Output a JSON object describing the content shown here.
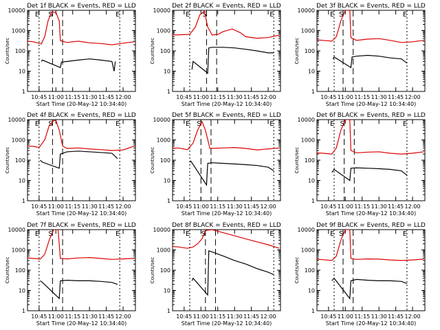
{
  "figure": {
    "xlabel": "Start Time (20-May-12 10:34:40)",
    "ylabel": "Counts/sec",
    "x_tick_labels": [
      "10:45",
      "11:00",
      "11:15",
      "11:30",
      "11:45",
      "12:00"
    ],
    "y_tick_labels": [
      "1",
      "10",
      "100",
      "1000",
      "10000"
    ],
    "marker_labels": [
      "E",
      "S",
      "E"
    ]
  },
  "colors": {
    "events": "#000000",
    "lld": "#dd0000",
    "axes": "#000000"
  },
  "chart_data": [
    {
      "type": "line",
      "title": "Det 1f BLACK = Events, RED = LLD",
      "ylim": [
        1,
        10000
      ],
      "y_scale": "log",
      "xlim": [
        "10:34:40",
        "12:11:00"
      ],
      "markers": {
        "E_left": "10:45",
        "S": "10:57",
        "E_right": "11:57"
      },
      "series": [
        {
          "name": "Events",
          "color": "#000000",
          "x": [
            "10:47",
            "10:48",
            "11:04",
            "11:05",
            "11:10",
            "11:20",
            "11:30",
            "11:40",
            "11:50",
            "11:52",
            "11:53"
          ],
          "y": [
            30,
            35,
            15,
            28,
            30,
            35,
            40,
            35,
            30,
            10,
            30
          ]
        },
        {
          "name": "LLD",
          "color": "#dd0000",
          "x": [
            "10:34",
            "10:40",
            "10:47",
            "10:50",
            "10:53",
            "10:56",
            "11:00",
            "11:03",
            "11:04",
            "11:10",
            "11:20",
            "11:30",
            "11:40",
            "11:50",
            "12:00",
            "12:10"
          ],
          "y": [
            300,
            280,
            220,
            500,
            3000,
            8000,
            8000,
            3000,
            320,
            260,
            300,
            250,
            230,
            200,
            240,
            280
          ]
        }
      ]
    },
    {
      "type": "line",
      "title": "Det 2f BLACK = Events, RED = LLD",
      "ylim": [
        1,
        10000
      ],
      "y_scale": "log",
      "xlim": [
        "10:34:40",
        "12:11:00"
      ],
      "markers": {
        "E_left": "10:50",
        "S": "11:05",
        "E_right": "12:05"
      },
      "series": [
        {
          "name": "Events",
          "color": "#000000",
          "x": [
            "10:52",
            "10:53",
            "11:06",
            "11:07",
            "11:10",
            "11:20",
            "11:30",
            "11:40",
            "11:50",
            "12:00",
            "12:05"
          ],
          "y": [
            12,
            30,
            8,
            140,
            150,
            150,
            140,
            120,
            100,
            80,
            80
          ]
        },
        {
          "name": "LLD",
          "color": "#dd0000",
          "x": [
            "10:34",
            "10:40",
            "10:50",
            "10:55",
            "10:59",
            "11:03",
            "11:06",
            "11:10",
            "11:15",
            "11:20",
            "11:28",
            "11:35",
            "11:40",
            "11:50",
            "12:00",
            "12:10"
          ],
          "y": [
            600,
            620,
            650,
            1500,
            6000,
            9000,
            1500,
            600,
            650,
            900,
            1200,
            800,
            500,
            420,
            450,
            600
          ]
        }
      ]
    },
    {
      "type": "line",
      "title": "Det 3f BLACK = Events, RED = LLD",
      "ylim": [
        1,
        10000
      ],
      "y_scale": "log",
      "xlim": [
        "10:34:40",
        "12:11:00"
      ],
      "markers": {
        "E_left": "10:50",
        "S": "10:58",
        "E_right": "11:55"
      },
      "series": [
        {
          "name": "Events",
          "color": "#000000",
          "x": [
            "10:49",
            "10:50",
            "11:05",
            "11:06",
            "11:10",
            "11:20",
            "11:30",
            "11:40",
            "11:50",
            "11:55"
          ],
          "y": [
            40,
            50,
            15,
            50,
            55,
            60,
            55,
            45,
            40,
            25
          ]
        },
        {
          "name": "LLD",
          "color": "#dd0000",
          "x": [
            "10:34",
            "10:40",
            "10:48",
            "10:52",
            "10:56",
            "11:00",
            "11:04",
            "11:05",
            "11:10",
            "11:20",
            "11:30",
            "11:40",
            "11:50",
            "12:00",
            "12:10"
          ],
          "y": [
            350,
            330,
            300,
            500,
            3000,
            10000,
            10000,
            450,
            330,
            380,
            400,
            330,
            260,
            280,
            330
          ]
        }
      ]
    },
    {
      "type": "line",
      "title": "Det 4f BLACK = Events, RED = LLD",
      "ylim": [
        1,
        10000
      ],
      "y_scale": "log",
      "xlim": [
        "10:34:40",
        "12:11:00"
      ],
      "markers": {
        "E_left": "10:45",
        "S": "10:57",
        "E_right": "11:57"
      },
      "series": [
        {
          "name": "Events",
          "color": "#000000",
          "x": [
            "10:46",
            "10:48",
            "11:03",
            "11:04",
            "11:10",
            "11:20",
            "11:30",
            "11:40",
            "11:50",
            "11:55"
          ],
          "y": [
            100,
            80,
            40,
            200,
            260,
            280,
            260,
            240,
            220,
            120
          ]
        },
        {
          "name": "LLD",
          "color": "#dd0000",
          "x": [
            "10:34",
            "10:40",
            "10:45",
            "10:50",
            "10:54",
            "10:58",
            "11:00",
            "11:03",
            "11:06",
            "11:10",
            "11:20",
            "11:30",
            "11:40",
            "11:50",
            "12:00",
            "12:10"
          ],
          "y": [
            500,
            480,
            420,
            1000,
            5000,
            9000,
            9000,
            3000,
            500,
            380,
            400,
            360,
            330,
            300,
            320,
            500
          ]
        }
      ]
    },
    {
      "type": "line",
      "title": "Det 5f BLACK = Events, RED = LLD",
      "ylim": [
        1,
        10000
      ],
      "y_scale": "log",
      "xlim": [
        "10:34:40",
        "12:11:00"
      ],
      "markers": {
        "E_left": "10:50",
        "S": "11:00",
        "E_right": "12:05"
      },
      "series": [
        {
          "name": "Events",
          "color": "#000000",
          "x": [
            "10:50",
            "10:51",
            "11:05",
            "11:06",
            "11:10",
            "11:20",
            "11:30",
            "11:40",
            "11:50",
            "12:00",
            "12:05"
          ],
          "y": [
            80,
            90,
            6,
            70,
            75,
            70,
            65,
            60,
            55,
            45,
            30
          ]
        },
        {
          "name": "LLD",
          "color": "#dd0000",
          "x": [
            "10:34",
            "10:40",
            "10:48",
            "10:53",
            "10:57",
            "11:01",
            "11:04",
            "11:08",
            "11:20",
            "11:30",
            "11:40",
            "11:50",
            "12:00",
            "12:10"
          ],
          "y": [
            380,
            400,
            330,
            700,
            3000,
            8000,
            3000,
            380,
            400,
            420,
            380,
            320,
            360,
            400
          ]
        }
      ]
    },
    {
      "type": "line",
      "title": "Det 6f BLACK = Events, RED = LLD",
      "ylim": [
        1,
        10000
      ],
      "y_scale": "log",
      "xlim": [
        "10:34:40",
        "12:11:00"
      ],
      "markers": {
        "E_left": "10:50",
        "S": "10:59",
        "E_right": "11:55"
      },
      "series": [
        {
          "name": "Events",
          "color": "#000000",
          "x": [
            "10:48",
            "10:50",
            "11:04",
            "11:05",
            "11:10",
            "11:20",
            "11:30",
            "11:40",
            "11:50",
            "11:55"
          ],
          "y": [
            25,
            35,
            10,
            40,
            42,
            40,
            38,
            35,
            30,
            18
          ]
        },
        {
          "name": "LLD",
          "color": "#dd0000",
          "x": [
            "10:34",
            "10:40",
            "10:48",
            "10:52",
            "10:56",
            "11:00",
            "11:04",
            "11:05",
            "11:10",
            "11:20",
            "11:30",
            "11:40",
            "11:50",
            "12:00",
            "12:10"
          ],
          "y": [
            230,
            220,
            200,
            400,
            3000,
            10000,
            10000,
            300,
            230,
            250,
            260,
            220,
            200,
            220,
            260
          ]
        }
      ]
    },
    {
      "type": "line",
      "title": "Det 7f BLACK = Events, RED = LLD",
      "ylim": [
        1,
        10000
      ],
      "y_scale": "log",
      "xlim": [
        "10:34:40",
        "12:11:00"
      ],
      "markers": {
        "E_left": "10:45",
        "S": "10:57",
        "E_right": "11:57"
      },
      "series": [
        {
          "name": "Events",
          "color": "#000000",
          "x": [
            "10:46",
            "10:48",
            "11:03",
            "11:04",
            "11:10",
            "11:20",
            "11:30",
            "11:40",
            "11:50",
            "11:55"
          ],
          "y": [
            30,
            25,
            4,
            30,
            32,
            30,
            30,
            28,
            25,
            20
          ]
        },
        {
          "name": "LLD",
          "color": "#dd0000",
          "x": [
            "10:34",
            "10:40",
            "10:46",
            "10:50",
            "10:54",
            "10:58",
            "11:02",
            "11:04",
            "11:10",
            "11:20",
            "11:30",
            "11:40",
            "11:50",
            "12:00",
            "12:10"
          ],
          "y": [
            400,
            380,
            350,
            600,
            3000,
            10000,
            10000,
            380,
            360,
            400,
            420,
            380,
            340,
            360,
            380
          ]
        }
      ]
    },
    {
      "type": "line",
      "title": "Det 8f BLACK = Events, RED = LLD",
      "ylim": [
        1,
        10000
      ],
      "y_scale": "log",
      "xlim": [
        "10:34:40",
        "12:11:00"
      ],
      "markers": {
        "E_left": "10:50",
        "S": "11:04",
        "E_right": "12:05"
      },
      "series": [
        {
          "name": "Events",
          "color": "#000000",
          "x": [
            "10:52",
            "10:53",
            "11:06",
            "11:07",
            "11:10",
            "11:20",
            "11:30",
            "11:40",
            "11:50",
            "12:00",
            "12:05"
          ],
          "y": [
            30,
            40,
            6,
            900,
            800,
            500,
            300,
            200,
            120,
            80,
            60
          ]
        },
        {
          "name": "LLD",
          "color": "#dd0000",
          "x": [
            "10:34",
            "10:40",
            "10:48",
            "10:53",
            "10:57",
            "11:01",
            "11:04",
            "11:10",
            "11:20",
            "11:30",
            "11:40",
            "11:50",
            "12:00",
            "12:10"
          ],
          "y": [
            1500,
            1400,
            1200,
            1400,
            2000,
            3500,
            9000,
            10000,
            7000,
            5000,
            3500,
            2500,
            1800,
            1200
          ]
        }
      ]
    },
    {
      "type": "line",
      "title": "Det 9f BLACK = Events, RED = LLD",
      "ylim": [
        1,
        10000
      ],
      "y_scale": "log",
      "xlim": [
        "10:34:40",
        "12:11:00"
      ],
      "markers": {
        "E_left": "10:50",
        "S": "10:58",
        "E_right": "11:55"
      },
      "series": [
        {
          "name": "Events",
          "color": "#000000",
          "x": [
            "10:48",
            "10:50",
            "11:04",
            "11:05",
            "11:10",
            "11:20",
            "11:30",
            "11:40",
            "11:50",
            "11:55"
          ],
          "y": [
            30,
            40,
            4,
            30,
            35,
            32,
            30,
            30,
            28,
            22
          ]
        },
        {
          "name": "LLD",
          "color": "#dd0000",
          "x": [
            "10:34",
            "10:40",
            "10:48",
            "10:52",
            "10:56",
            "11:00",
            "11:04",
            "11:05",
            "11:10",
            "11:20",
            "11:30",
            "11:40",
            "11:50",
            "12:00",
            "12:10"
          ],
          "y": [
            350,
            330,
            300,
            500,
            3000,
            10000,
            10000,
            380,
            340,
            360,
            350,
            320,
            300,
            320,
            350
          ]
        }
      ]
    }
  ]
}
